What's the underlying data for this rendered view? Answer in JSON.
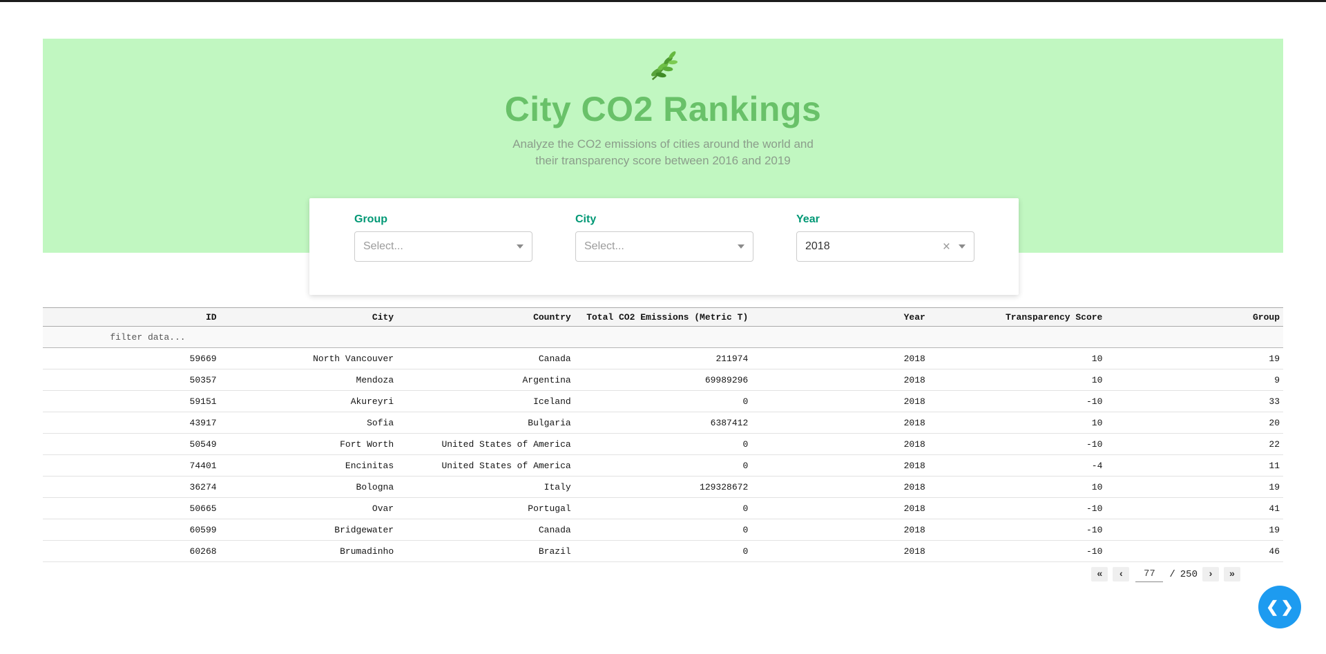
{
  "hero": {
    "icon": "leaf-branch-icon",
    "title": "City CO2 Rankings",
    "subtitle_line1": "Analyze the CO2 emissions of cities around the world and",
    "subtitle_line2": "their transparency score between 2016 and 2019",
    "background_color": "#c1f7c1",
    "title_color": "#69c169"
  },
  "filters": {
    "label_color": "#019875",
    "group": {
      "label": "Group",
      "placeholder": "Select..."
    },
    "city": {
      "label": "City",
      "placeholder": "Select..."
    },
    "year": {
      "label": "Year",
      "value": "2018"
    }
  },
  "table": {
    "columns": [
      "ID",
      "City",
      "Country",
      "Total CO2 Emissions (Metric T)",
      "Year",
      "Transparency Score",
      "Group"
    ],
    "filter_placeholder": "filter data...",
    "rows": [
      [
        "59669",
        "North Vancouver",
        "Canada",
        "211974",
        "2018",
        "10",
        "19"
      ],
      [
        "50357",
        "Mendoza",
        "Argentina",
        "69989296",
        "2018",
        "10",
        "9"
      ],
      [
        "59151",
        "Akureyri",
        "Iceland",
        "0",
        "2018",
        "-10",
        "33"
      ],
      [
        "43917",
        "Sofia",
        "Bulgaria",
        "6387412",
        "2018",
        "10",
        "20"
      ],
      [
        "50549",
        "Fort Worth",
        "United States of America",
        "0",
        "2018",
        "-10",
        "22"
      ],
      [
        "74401",
        "Encinitas",
        "United States of America",
        "0",
        "2018",
        "-4",
        "11"
      ],
      [
        "36274",
        "Bologna",
        "Italy",
        "129328672",
        "2018",
        "10",
        "19"
      ],
      [
        "50665",
        "Ovar",
        "Portugal",
        "0",
        "2018",
        "-10",
        "41"
      ],
      [
        "60599",
        "Bridgewater",
        "Canada",
        "0",
        "2018",
        "-10",
        "19"
      ],
      [
        "60268",
        "Brumadinho",
        "Brazil",
        "0",
        "2018",
        "-10",
        "46"
      ]
    ]
  },
  "pagination": {
    "first": "«",
    "prev": "‹",
    "current_page": "77",
    "separator": "/",
    "total_pages": "250",
    "next": "›",
    "last": "»"
  },
  "fab": {
    "color": "#1d9bf0",
    "icon_left": "❮",
    "icon_right": "❯"
  }
}
